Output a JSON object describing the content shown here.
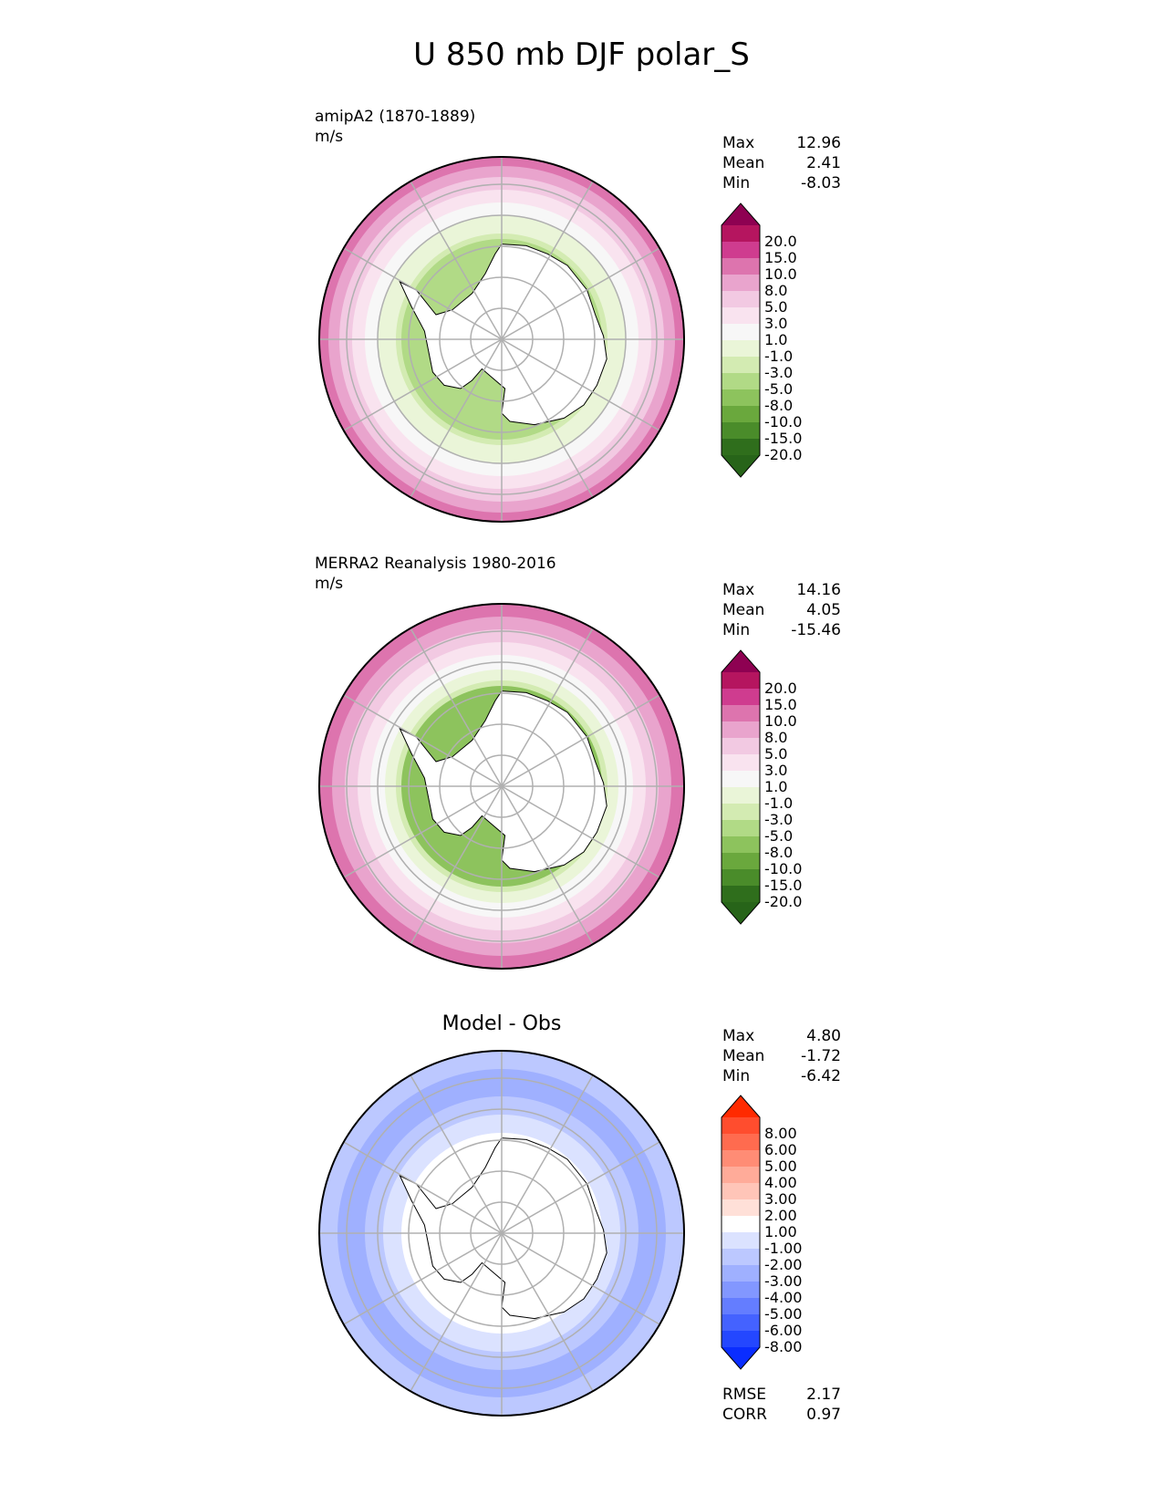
{
  "title": "U 850 mb DJF polar_S",
  "panels": [
    {
      "label_line1": "amipA2 (1870-1889)",
      "label_line2": "m/s",
      "stats": {
        "max_label": "Max",
        "max": "12.96",
        "mean_label": "Mean",
        "mean": "2.41",
        "min_label": "Min",
        "min": "-8.03"
      }
    },
    {
      "label_line1": "MERRA2 Reanalysis 1980-2016",
      "label_line2": "m/s",
      "stats": {
        "max_label": "Max",
        "max": "14.16",
        "mean_label": "Mean",
        "mean": "4.05",
        "min_label": "Min",
        "min": "-15.46"
      }
    },
    {
      "title": "Model - Obs",
      "stats": {
        "max_label": "Max",
        "max": "4.80",
        "mean_label": "Mean",
        "mean": "-1.72",
        "min_label": "Min",
        "min": "-6.42"
      },
      "metrics": {
        "rmse_label": "RMSE",
        "rmse": "2.17",
        "corr_label": "CORR",
        "corr": "0.97"
      }
    }
  ],
  "chart_data": [
    {
      "type": "heatmap",
      "projection": "south polar stereographic",
      "title": "amipA2 (1870-1889)",
      "units": "m/s",
      "max": 12.96,
      "mean": 2.41,
      "min": -8.03,
      "colorbar": {
        "levels": [
          "20.0",
          "15.0",
          "10.0",
          "8.0",
          "5.0",
          "3.0",
          "1.0",
          "-1.0",
          "-3.0",
          "-5.0",
          "-8.0",
          "-10.0",
          "-15.0",
          "-20.0"
        ],
        "colors": [
          "#8e0152",
          "#b5155f",
          "#cf3c8f",
          "#dd74ae",
          "#e9a4cd",
          "#f2c9e2",
          "#f9e3ef",
          "#f7f7f7",
          "#eaf5d8",
          "#d3ebb2",
          "#b1da86",
          "#8dc35d",
          "#6aa83d",
          "#4a8c2a",
          "#2f6e1c",
          "#276419"
        ],
        "extend": "both"
      },
      "field_rings": [
        {
          "r_norm": 1.0,
          "value": 10.0
        },
        {
          "r_norm": 0.95,
          "value": 8.0
        },
        {
          "r_norm": 0.89,
          "value": 5.0
        },
        {
          "r_norm": 0.82,
          "value": 3.0
        },
        {
          "r_norm": 0.75,
          "value": 1.0
        },
        {
          "r_norm": 0.68,
          "value": -1.0
        },
        {
          "r_norm": 0.58,
          "value": -3.0
        },
        {
          "r_norm": 0.55,
          "value": -5.0
        },
        {
          "r_norm": 0.0,
          "value": null
        }
      ]
    },
    {
      "type": "heatmap",
      "projection": "south polar stereographic",
      "title": "MERRA2 Reanalysis 1980-2016",
      "units": "m/s",
      "max": 14.16,
      "mean": 4.05,
      "min": -15.46,
      "colorbar": {
        "levels": [
          "20.0",
          "15.0",
          "10.0",
          "8.0",
          "5.0",
          "3.0",
          "1.0",
          "-1.0",
          "-3.0",
          "-5.0",
          "-8.0",
          "-10.0",
          "-15.0",
          "-20.0"
        ],
        "colors": [
          "#8e0152",
          "#b5155f",
          "#cf3c8f",
          "#dd74ae",
          "#e9a4cd",
          "#f2c9e2",
          "#f9e3ef",
          "#f7f7f7",
          "#eaf5d8",
          "#d3ebb2",
          "#b1da86",
          "#8dc35d",
          "#6aa83d",
          "#4a8c2a",
          "#2f6e1c",
          "#276419"
        ],
        "extend": "both"
      },
      "field_rings": [
        {
          "r_norm": 1.0,
          "value": 10.0
        },
        {
          "r_norm": 0.93,
          "value": 8.0
        },
        {
          "r_norm": 0.86,
          "value": 5.0
        },
        {
          "r_norm": 0.79,
          "value": 3.0
        },
        {
          "r_norm": 0.72,
          "value": 1.0
        },
        {
          "r_norm": 0.64,
          "value": -1.0
        },
        {
          "r_norm": 0.58,
          "value": -3.0
        },
        {
          "r_norm": 0.55,
          "value": -8.0
        },
        {
          "r_norm": 0.0,
          "value": null
        }
      ]
    },
    {
      "type": "heatmap",
      "projection": "south polar stereographic",
      "title": "Model - Obs",
      "max": 4.8,
      "mean": -1.72,
      "min": -6.42,
      "rmse": 2.17,
      "corr": 0.97,
      "colorbar": {
        "levels": [
          "8.00",
          "6.00",
          "5.00",
          "4.00",
          "3.00",
          "2.00",
          "1.00",
          "-1.00",
          "-2.00",
          "-3.00",
          "-4.00",
          "-5.00",
          "-6.00",
          "-8.00"
        ],
        "colors": [
          "#ff2a00",
          "#ff4d2e",
          "#ff6b4f",
          "#ff8c75",
          "#ffab99",
          "#ffc5b8",
          "#ffe0d8",
          "#ffffff",
          "#dbe2ff",
          "#bcc8ff",
          "#9fb0ff",
          "#8297ff",
          "#647dff",
          "#4462ff",
          "#2447ff",
          "#0a2dff"
        ],
        "extend": "both"
      },
      "field_rings": [
        {
          "r_norm": 1.0,
          "value": -2.0
        },
        {
          "r_norm": 0.9,
          "value": -3.0
        },
        {
          "r_norm": 0.75,
          "value": -2.0
        },
        {
          "r_norm": 0.65,
          "value": -1.0
        },
        {
          "r_norm": 0.55,
          "value": 0.0
        },
        {
          "r_norm": 0.0,
          "value": null
        }
      ]
    }
  ]
}
